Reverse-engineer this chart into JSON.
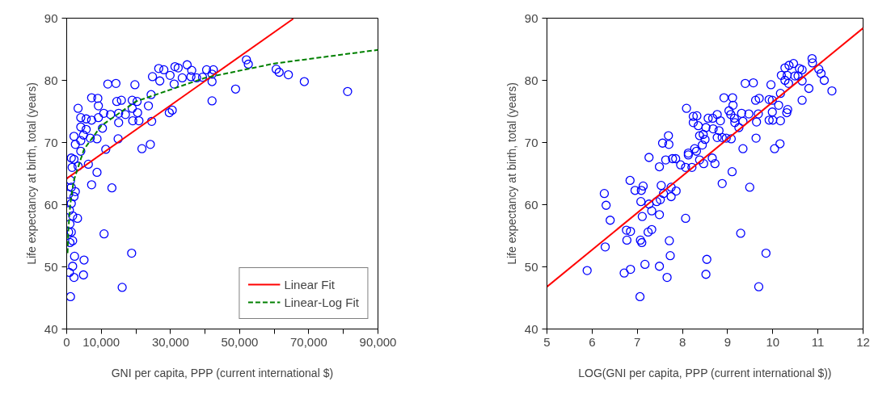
{
  "chart_data": [
    {
      "type": "scatter",
      "xlabel": "GNI per capita, PPP (current international $)",
      "ylabel": "Life expectancy at birth, total (years)",
      "xlim": [
        0,
        90000
      ],
      "ylim": [
        40,
        90
      ],
      "xticks": [
        {
          "value": 0,
          "label": "0"
        },
        {
          "value": 10000,
          "label": "10,000"
        },
        {
          "value": 20000,
          "label": null
        },
        {
          "value": 30000,
          "label": "30,000"
        },
        {
          "value": 40000,
          "label": null
        },
        {
          "value": 50000,
          "label": "50,000"
        },
        {
          "value": 60000,
          "label": null
        },
        {
          "value": 70000,
          "label": "70,000"
        },
        {
          "value": 80000,
          "label": null
        },
        {
          "value": 90000,
          "label": "90,000"
        }
      ],
      "yticks": [
        40,
        50,
        60,
        70,
        80,
        90
      ],
      "grid": false,
      "legend": "bottom right",
      "series": [
        {
          "marker": "circle",
          "color": "#0000ff",
          "x": [
            1100,
            780,
            2110,
            1720,
            5010,
            4850,
            2270,
            940,
            1720,
            1330,
            550,
            940,
            3130,
            1720,
            780,
            1330,
            2110,
            550,
            2500,
            1330,
            1100,
            7200,
            8760,
            13070,
            10800,
            18780,
            16040,
            1560,
            3290,
            6260,
            2110,
            4070,
            1330,
            2500,
            4070,
            2110,
            4850,
            6810,
            8760,
            3290,
            4070,
            5630,
            7200,
            9160,
            10710,
            12680,
            15020,
            16980,
            18940,
            20500,
            4070,
            5630,
            10330,
            11290,
            14870,
            15020,
            19090,
            20890,
            24570,
            21750,
            24180,
            7200,
            9000,
            9160,
            14480,
            15810,
            18940,
            20350,
            23630,
            24410,
            11890,
            14240,
            19720,
            24800,
            26610,
            28090,
            26920,
            29890,
            31300,
            32240,
            33410,
            34820,
            36150,
            35920,
            37560,
            39280,
            40450,
            42410,
            42020,
            42020,
            31070,
            29660,
            30520,
            42020,
            48830,
            51960,
            52510,
            60570,
            61430,
            64090,
            68700,
            81220
          ],
          "values": [
            45.2,
            49.1,
            48.3,
            50.1,
            51.1,
            48.7,
            51.7,
            53.9,
            54.2,
            55.6,
            55.6,
            56.9,
            57.8,
            58.2,
            59.1,
            60.2,
            61.3,
            61.7,
            62.1,
            62.8,
            63.9,
            63.2,
            65.2,
            62.7,
            55.3,
            52.2,
            46.7,
            66.0,
            66.2,
            66.5,
            67.3,
            68.6,
            67.5,
            69.7,
            70.3,
            71.0,
            71.2,
            70.7,
            70.6,
            75.5,
            74.0,
            73.8,
            73.6,
            74.0,
            74.7,
            74.5,
            74.7,
            74.5,
            75.5,
            74.8,
            72.5,
            72.1,
            72.3,
            68.9,
            70.6,
            73.2,
            73.5,
            73.5,
            73.4,
            69.0,
            69.7,
            77.2,
            77.1,
            75.9,
            76.6,
            76.8,
            76.8,
            76.6,
            75.9,
            77.7,
            79.4,
            79.5,
            79.3,
            80.6,
            81.9,
            81.7,
            79.9,
            80.8,
            82.2,
            82.0,
            80.4,
            82.5,
            81.6,
            80.6,
            80.4,
            80.5,
            81.7,
            81.7,
            79.8,
            81.0,
            79.4,
            74.8,
            75.2,
            76.7,
            78.6,
            83.3,
            82.6,
            81.8,
            81.3,
            80.9,
            79.8,
            78.2
          ]
        },
        {
          "type": "line",
          "name": "Linear Fit",
          "color": "#ff0000",
          "line_style": "solid",
          "x": [
            0,
            65500
          ],
          "values": [
            64.2,
            89.9
          ]
        },
        {
          "type": "line",
          "name": "Linear-Log Fit",
          "color": "#008000",
          "line_style": "dashed",
          "x": [
            250,
            500,
            1000,
            2000,
            5000,
            10000,
            20000,
            40000,
            60000,
            90000
          ],
          "values": [
            52.2,
            56.1,
            59.9,
            63.8,
            68.9,
            72.7,
            76.6,
            80.4,
            82.7,
            84.9
          ]
        }
      ]
    },
    {
      "type": "scatter",
      "xlabel": "LOG(GNI per capita, PPP (current international $))",
      "ylabel": "Life expectancy at birth, total (years)",
      "xlim": [
        5,
        12
      ],
      "ylim": [
        40,
        90
      ],
      "xticks": [
        5,
        6,
        7,
        8,
        9,
        10,
        11,
        12
      ],
      "yticks": [
        40,
        50,
        60,
        70,
        80,
        90
      ],
      "grid": false,
      "series": [
        {
          "marker": "circle",
          "color": "#0000ff",
          "x": [
            5.89,
            6.27,
            6.31,
            6.4,
            6.29,
            6.84,
            6.95,
            7.09,
            7.13,
            7.08,
            7.26,
            7.32,
            7.43,
            7.51,
            7.53,
            7.58,
            7.75,
            7.75,
            7.86,
            7.11,
            7.49,
            8.07,
            6.76,
            6.85,
            6.77,
            7.07,
            7.1,
            7.24,
            7.32,
            6.71,
            6.85,
            7.17,
            7.06,
            7.49,
            7.66,
            7.71,
            7.73,
            8.54,
            8.52,
            9.29,
            8.88,
            9.1,
            9.49,
            9.69,
            9.85,
            7.26,
            7.49,
            7.56,
            7.7,
            7.69,
            7.63,
            7.78,
            7.85,
            7.96,
            8.07,
            8.21,
            8.13,
            8.13,
            8.27,
            8.31,
            8.44,
            8.5,
            8.38,
            8.46,
            8.38,
            8.47,
            8.66,
            8.72,
            8.09,
            8.24,
            8.32,
            8.24,
            8.35,
            8.52,
            8.57,
            8.67,
            8.77,
            8.84,
            8.68,
            8.81,
            8.77,
            8.88,
            8.97,
            9.08,
            8.92,
            9.11,
            9.12,
            9.03,
            9.07,
            9.15,
            9.16,
            9.25,
            9.31,
            9.47,
            9.34,
            9.39,
            9.57,
            9.62,
            9.7,
            9.68,
            9.64,
            9.63,
            9.34,
            9.96,
            9.92,
            9.99,
            10.13,
            9.99,
            9.92,
            10.0,
            10.17,
            10.04,
            10.16,
            10.31,
            10.33,
            10.17,
            10.19,
            10.27,
            10.27,
            10.32,
            10.36,
            10.46,
            10.35,
            10.49,
            10.59,
            10.65,
            10.56,
            10.65,
            10.65,
            10.8,
            10.87,
            10.88,
            11.02,
            11.07,
            11.14,
            11.31
          ],
          "values": [
            49.4,
            61.8,
            59.9,
            57.5,
            53.2,
            63.9,
            62.3,
            62.3,
            63.0,
            60.5,
            60.1,
            59.0,
            60.5,
            60.8,
            63.1,
            61.8,
            62.8,
            61.3,
            62.2,
            58.1,
            58.4,
            57.8,
            55.9,
            55.7,
            54.3,
            54.3,
            53.9,
            55.6,
            56.0,
            49.0,
            49.6,
            50.4,
            45.2,
            50.1,
            48.3,
            54.2,
            51.8,
            51.2,
            48.8,
            55.4,
            63.4,
            65.3,
            62.8,
            46.8,
            52.2,
            67.6,
            66.1,
            69.9,
            69.7,
            71.1,
            67.2,
            67.4,
            67.4,
            66.4,
            66.0,
            66.0,
            68.3,
            68.0,
            69.0,
            68.6,
            69.6,
            70.5,
            71.1,
            71.3,
            67.2,
            66.6,
            67.5,
            66.6,
            75.5,
            74.2,
            74.3,
            73.2,
            72.7,
            72.4,
            73.9,
            73.9,
            74.5,
            73.5,
            72.2,
            71.9,
            70.8,
            70.8,
            70.7,
            70.6,
            77.2,
            77.2,
            76.0,
            75.1,
            74.5,
            73.9,
            73.2,
            72.4,
            74.7,
            74.6,
            73.4,
            79.5,
            79.6,
            76.8,
            77.1,
            74.6,
            73.3,
            70.7,
            69.0,
            79.3,
            76.9,
            76.8,
            76.0,
            74.9,
            73.6,
            73.6,
            73.5,
            69.0,
            69.8,
            74.8,
            75.3,
            77.9,
            80.8,
            82.0,
            80.0,
            80.8,
            82.4,
            82.7,
            79.5,
            80.7,
            81.9,
            81.7,
            80.7,
            79.9,
            76.8,
            78.7,
            83.5,
            82.8,
            81.8,
            81.1,
            80.0,
            78.3
          ]
        },
        {
          "type": "line",
          "color": "#ff0000",
          "line_style": "solid",
          "x": [
            5,
            12
          ],
          "values": [
            46.8,
            88.4
          ]
        }
      ]
    }
  ]
}
